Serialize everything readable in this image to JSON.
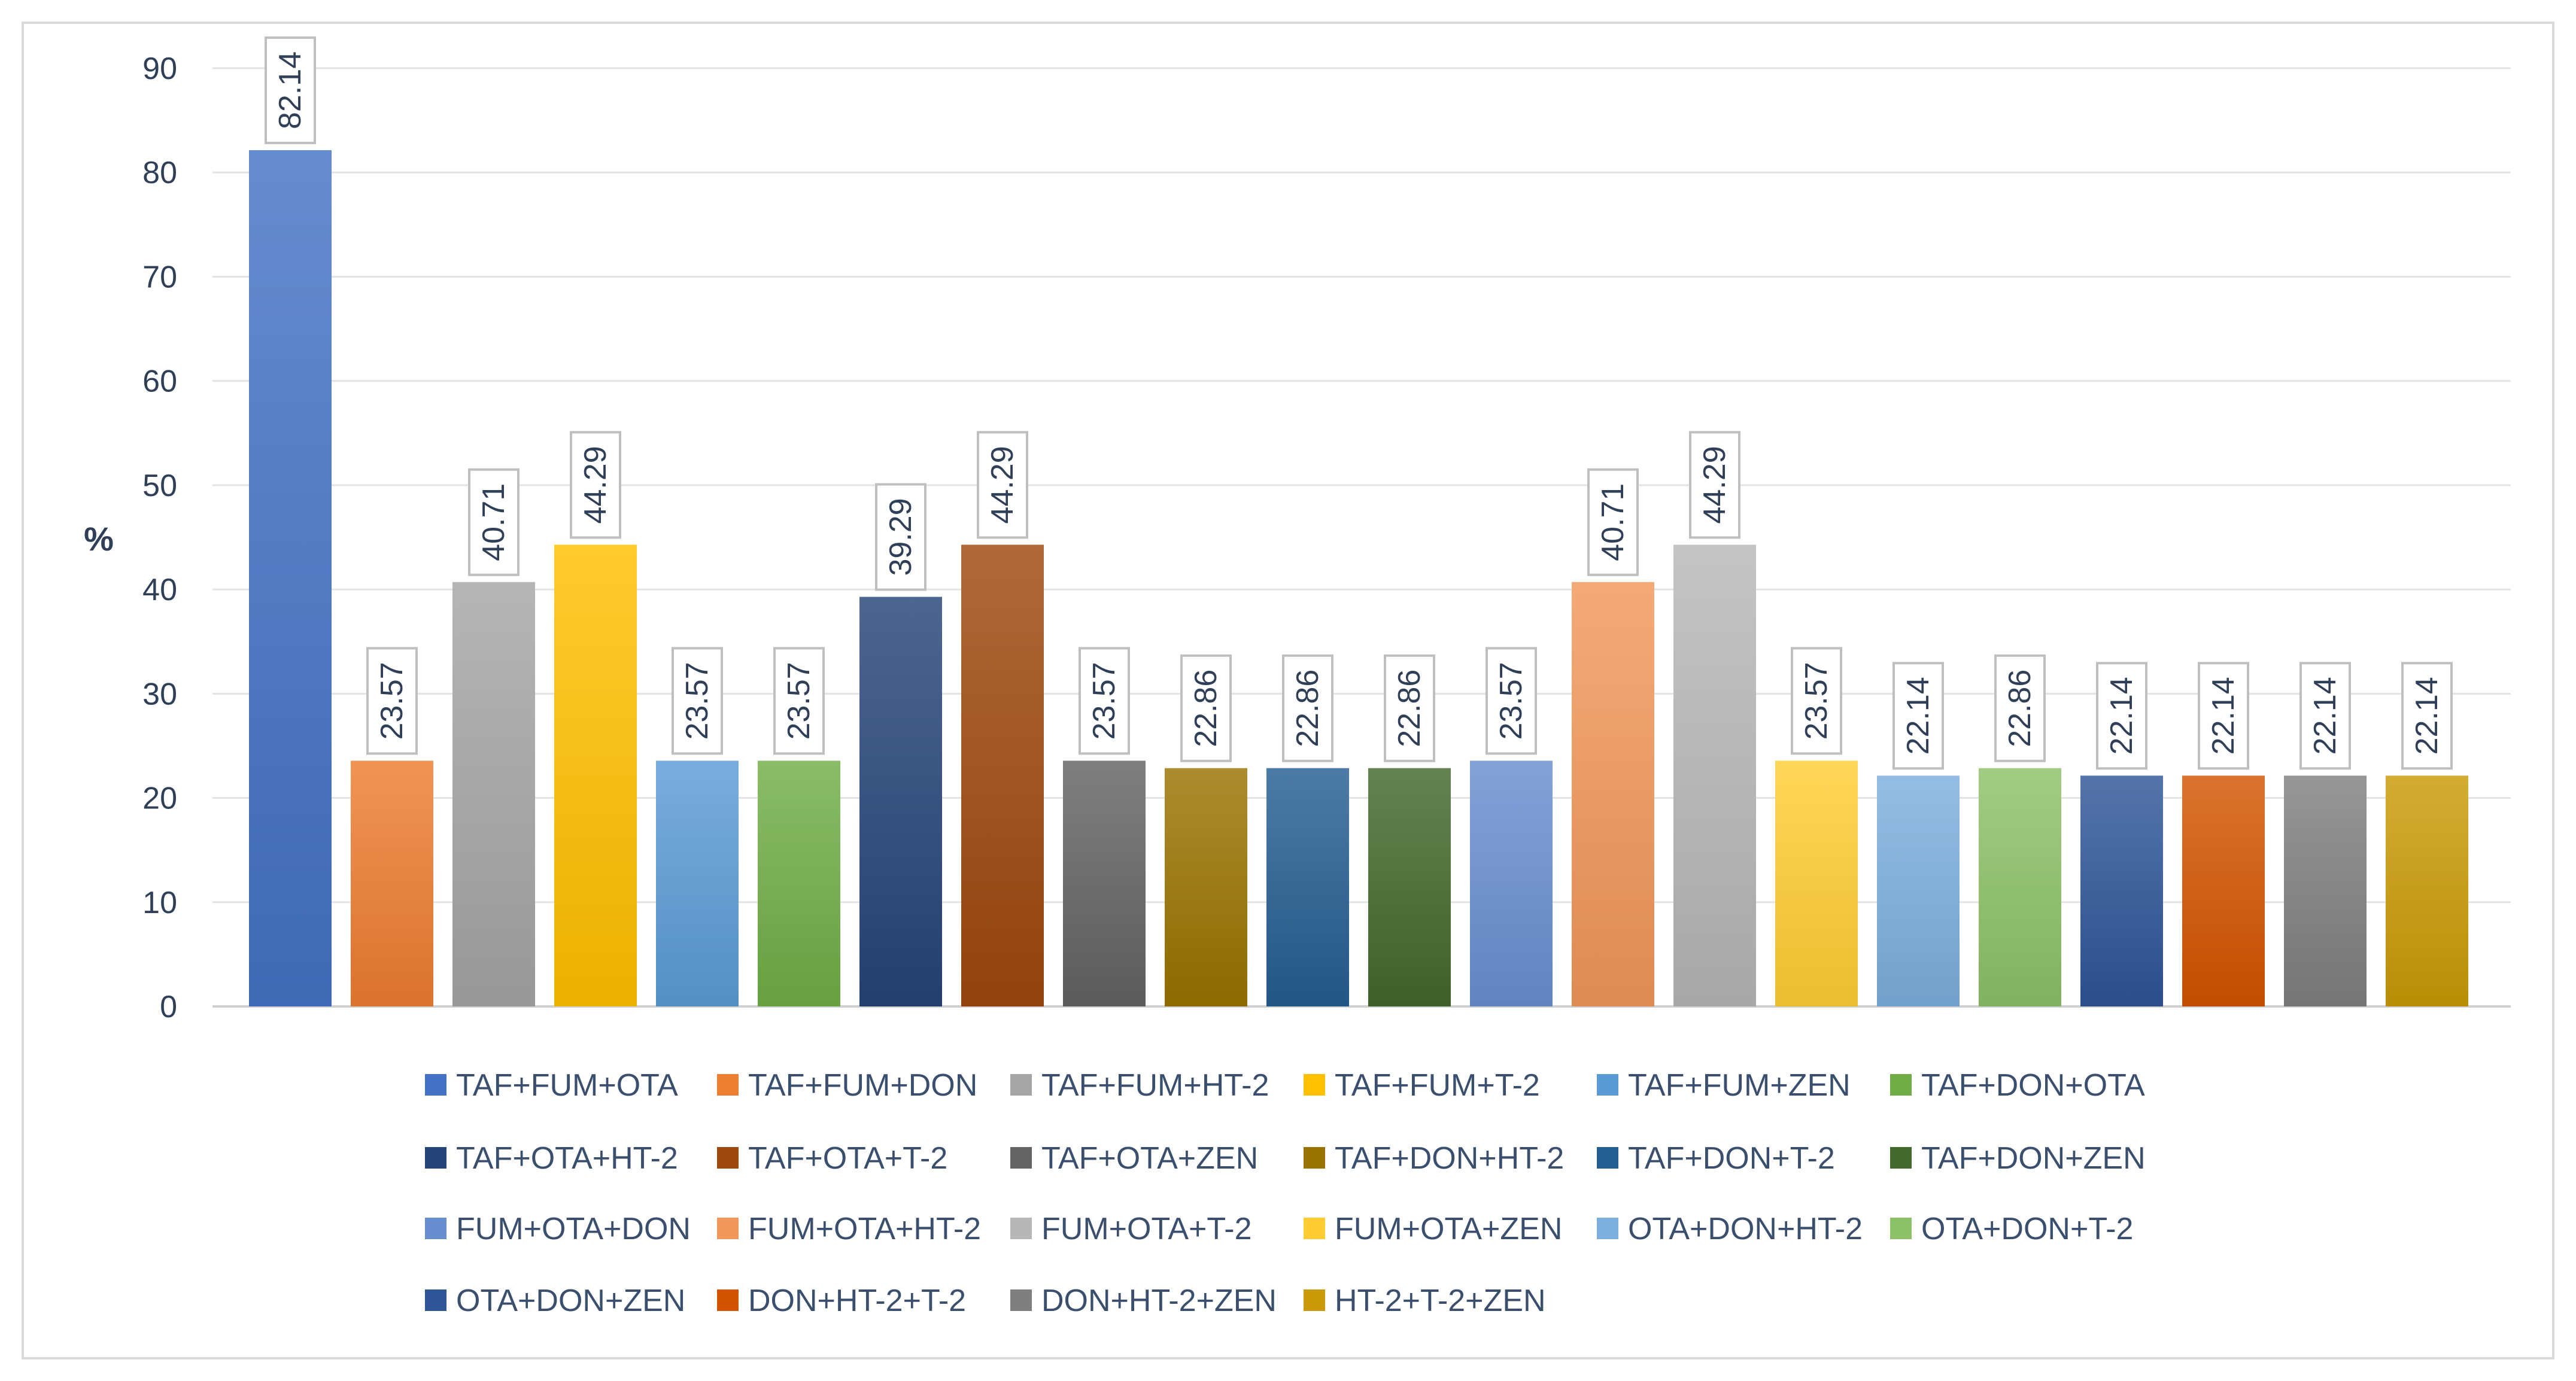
{
  "chart_data": {
    "type": "bar",
    "title": "",
    "xlabel": "",
    "ylabel": "%",
    "ylim": [
      0,
      90
    ],
    "yticks": [
      0,
      10,
      20,
      30,
      40,
      50,
      60,
      70,
      80,
      90
    ],
    "grid": true,
    "legend_position": "bottom",
    "categories": [
      "TAF+FUM+OTA",
      "TAF+FUM+DON",
      "TAF+FUM+HT-2",
      "TAF+FUM+T-2",
      "TAF+FUM+ZEN",
      "TAF+DON+OTA",
      "TAF+OTA+HT-2",
      "TAF+OTA+T-2",
      "TAF+OTA+ZEN",
      "TAF+DON+HT-2",
      "TAF+DON+T-2",
      "TAF+DON+ZEN",
      "FUM+OTA+DON",
      "FUM+OTA+HT-2",
      "FUM+OTA+T-2",
      "FUM+OTA+ZEN",
      "OTA+DON+HT-2",
      "OTA+DON+T-2",
      "OTA+DON+ZEN",
      "DON+HT-2+T-2",
      "DON+HT-2+ZEN",
      "HT-2+T-2+ZEN"
    ],
    "values": [
      82.14,
      23.57,
      40.71,
      44.29,
      23.57,
      23.57,
      39.29,
      44.29,
      23.57,
      22.86,
      22.86,
      22.86,
      23.57,
      40.71,
      44.29,
      23.57,
      22.14,
      22.86,
      22.14,
      22.14,
      22.14,
      22.14
    ],
    "data_labels": [
      "82.14",
      "23.57",
      "40.71",
      "44.29",
      "23.57",
      "23.57",
      "39.29",
      "44.29",
      "23.57",
      "22.86",
      "22.86",
      "22.86",
      "23.57",
      "40.71",
      "44.29",
      "23.57",
      "22.14",
      "22.86",
      "22.14",
      "22.14",
      "22.14",
      "22.14"
    ],
    "colors": [
      "#4472c4",
      "#ed7d31",
      "#a5a5a5",
      "#ffc000",
      "#5b9bd5",
      "#70ad47",
      "#264478",
      "#9e480e",
      "#636363",
      "#997300",
      "#255e91",
      "#43682b",
      "#698ed0",
      "#f1975a",
      "#b7b7b7",
      "#ffcd33",
      "#7cafdd",
      "#8cc168",
      "#2f5597",
      "#d35400",
      "#7f7f7f",
      "#c99a06"
    ]
  }
}
